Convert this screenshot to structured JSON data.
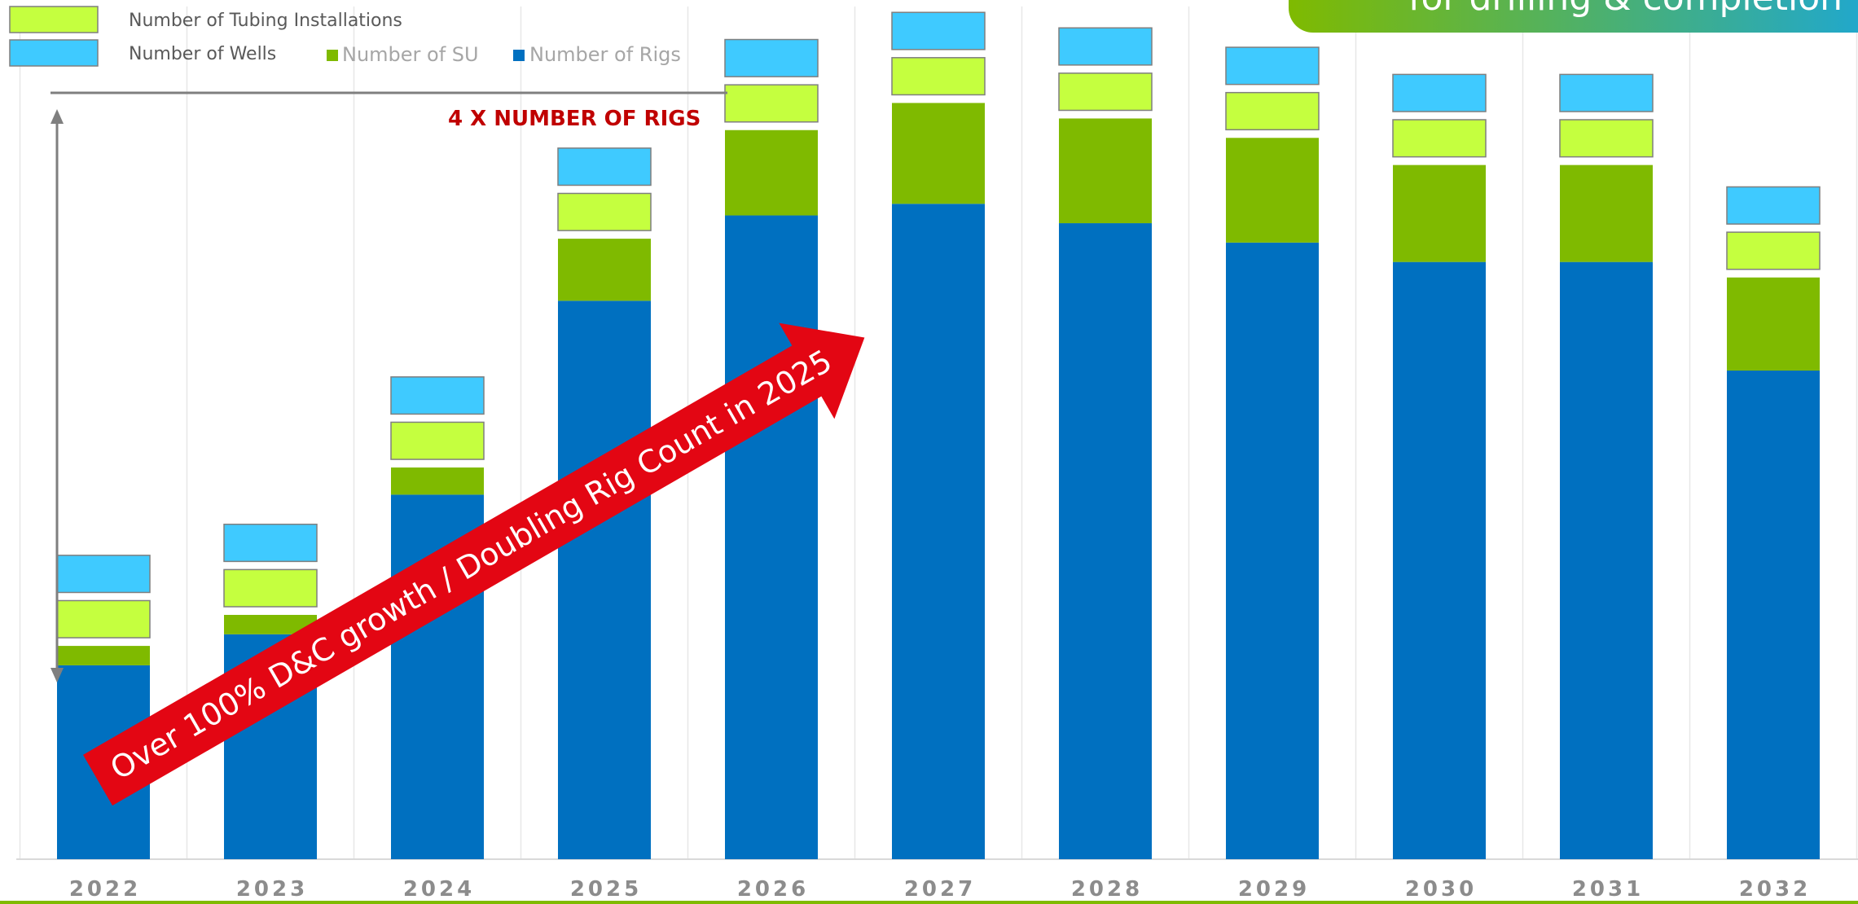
{
  "title_banner": "for drilling & completion",
  "legend": {
    "tubing": "Number of Tubing Installations",
    "wells": "Number of Wells",
    "su": "Number of SU",
    "rigs": "Number of Rigs"
  },
  "callout_rigs": "4 X NUMBER OF RIGS",
  "growth_arrow_text": "Over 100% D&C growth / Doubling Rig Count in 2025",
  "colors": {
    "rigs": "#0070c0",
    "su": "#7fba00",
    "tubing": "#c5ff3f",
    "wells": "#3fcaff",
    "callout": "#c00000",
    "arrow": "#e30613",
    "banner_start": "#7fba00",
    "banner_end": "#1ca7d6"
  },
  "chart_data": {
    "type": "bar",
    "stacked": true,
    "categories": [
      "2022",
      "2023",
      "2024",
      "2025",
      "2026",
      "2027",
      "2028",
      "2029",
      "2030",
      "2031",
      "2032"
    ],
    "series": [
      {
        "name": "Number of Rigs",
        "values": [
          25,
          29,
          47,
          72,
          83,
          84.5,
          82,
          79.5,
          77,
          77,
          63
        ]
      },
      {
        "name": "Number of SU",
        "values": [
          2.5,
          2.5,
          3.5,
          8,
          11,
          13,
          13.5,
          13.5,
          12.5,
          12.5,
          12
        ]
      },
      {
        "name": "Number of Tubing Installations",
        "values": [
          5,
          5,
          5,
          5,
          5,
          5,
          5,
          5,
          5,
          5,
          5
        ]
      },
      {
        "name": "Number of Wells",
        "values": [
          5,
          5,
          5,
          5,
          5,
          5,
          5,
          5,
          5,
          5,
          5
        ]
      }
    ],
    "ylim": [
      0,
      105
    ],
    "grid": "vertical",
    "legend_position": "top-left",
    "annotations": [
      "4 X NUMBER OF RIGS",
      "Over 100% D&C growth / Doubling Rig Count in 2025"
    ]
  }
}
